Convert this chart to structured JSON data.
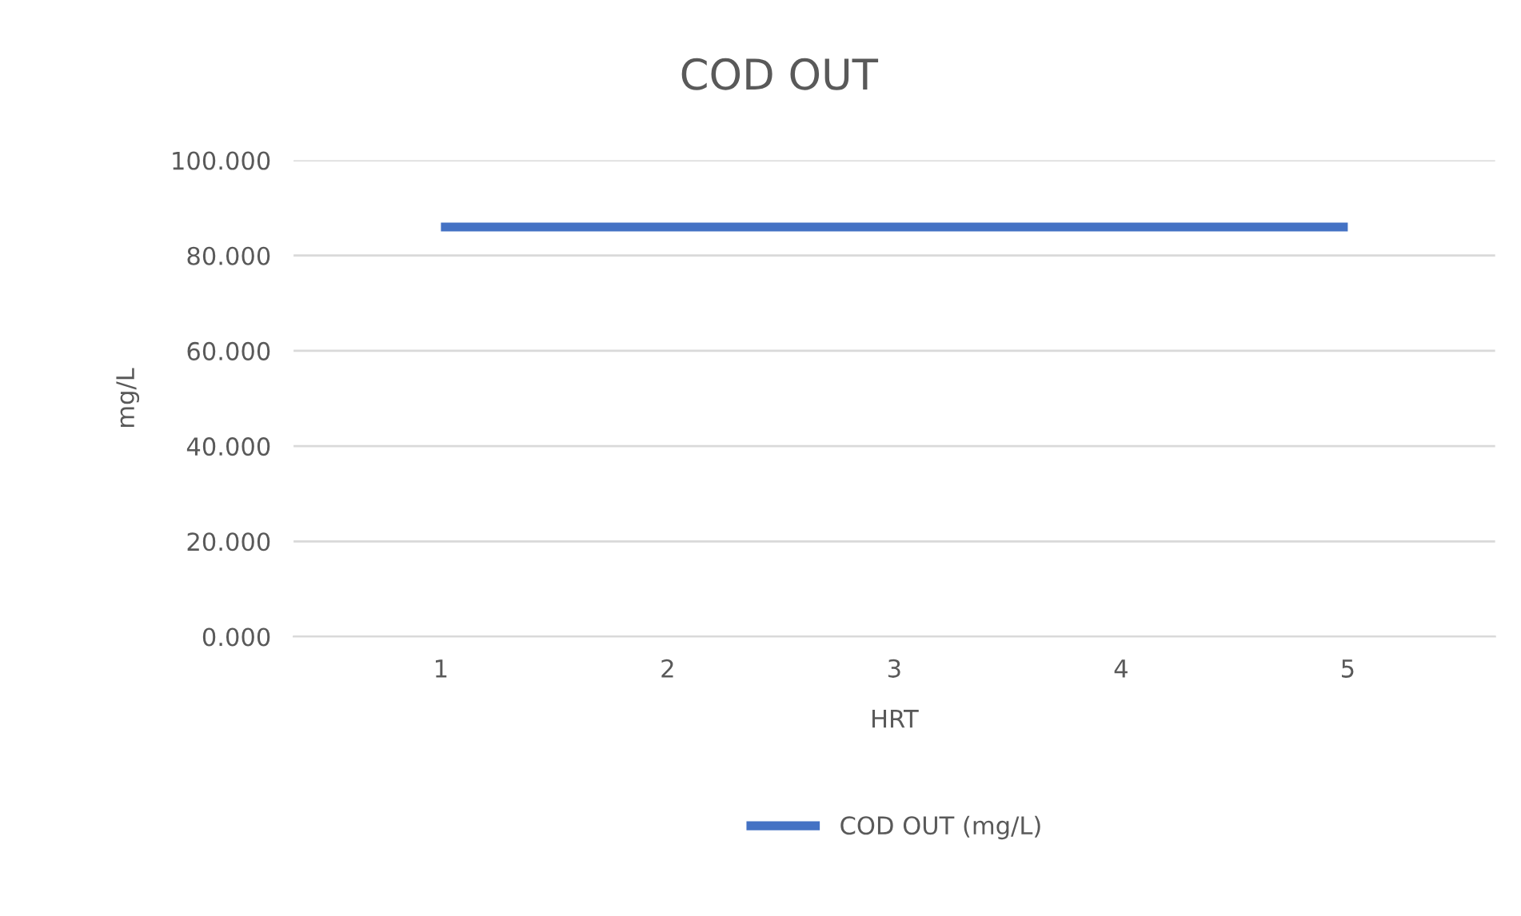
{
  "chart_data": {
    "type": "line",
    "title": "COD OUT",
    "xlabel": "HRT",
    "ylabel": "mg/L",
    "categories": [
      "1",
      "2",
      "3",
      "4",
      "5"
    ],
    "series": [
      {
        "name": "COD OUT (mg/L)",
        "color": "#4472c4",
        "values": [
          86,
          86,
          86,
          86,
          86
        ]
      }
    ],
    "ylim": [
      0,
      100
    ],
    "yticks": [
      {
        "value": 0,
        "label": "0.000"
      },
      {
        "value": 20,
        "label": "20.000"
      },
      {
        "value": 40,
        "label": "40.000"
      },
      {
        "value": 60,
        "label": "60.000"
      },
      {
        "value": 80,
        "label": "80.000"
      },
      {
        "value": 100,
        "label": "100.000"
      }
    ],
    "grid": "y",
    "legend": "bottom",
    "marker": "none",
    "line_style": "solid"
  }
}
